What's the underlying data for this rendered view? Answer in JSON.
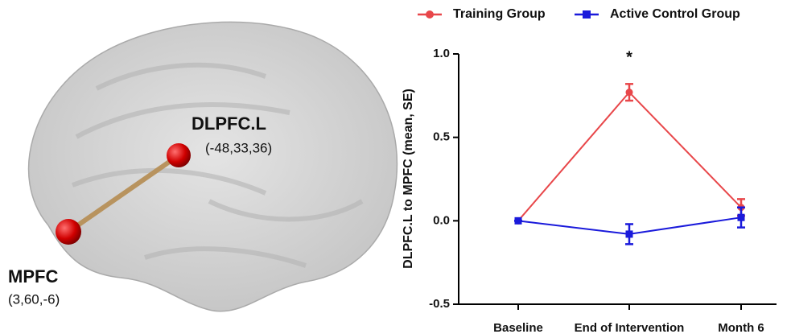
{
  "figure": {
    "regions": [
      {
        "label": "DLPFC.L",
        "coords": "(-48,33,36)"
      },
      {
        "label": "MPFC",
        "coords": "(3,60,-6)"
      }
    ]
  },
  "chart_data": {
    "type": "line",
    "ylabel": "DLPFC.L to MPFC (mean, SE)",
    "annotation": "*",
    "categories": [
      "Baseline",
      "End of Intervention",
      "Month 6"
    ],
    "series": [
      {
        "name": "Training Group",
        "color": "#e8474a",
        "marker": "circle",
        "values": [
          0,
          0.77,
          0.08
        ],
        "errors": [
          0,
          0.05,
          0.05
        ]
      },
      {
        "name": "Active Control Group",
        "color": "#1a1adb",
        "marker": "square",
        "values": [
          0,
          -0.08,
          0.02
        ],
        "errors": [
          0,
          0.06,
          0.06
        ]
      }
    ],
    "ylim": [
      -0.5,
      1.0
    ],
    "yticks": [
      -0.5,
      0.0,
      0.5,
      1.0
    ],
    "ytick_labels": [
      "-0.5",
      "0.0",
      "0.5",
      "1.0"
    ]
  }
}
